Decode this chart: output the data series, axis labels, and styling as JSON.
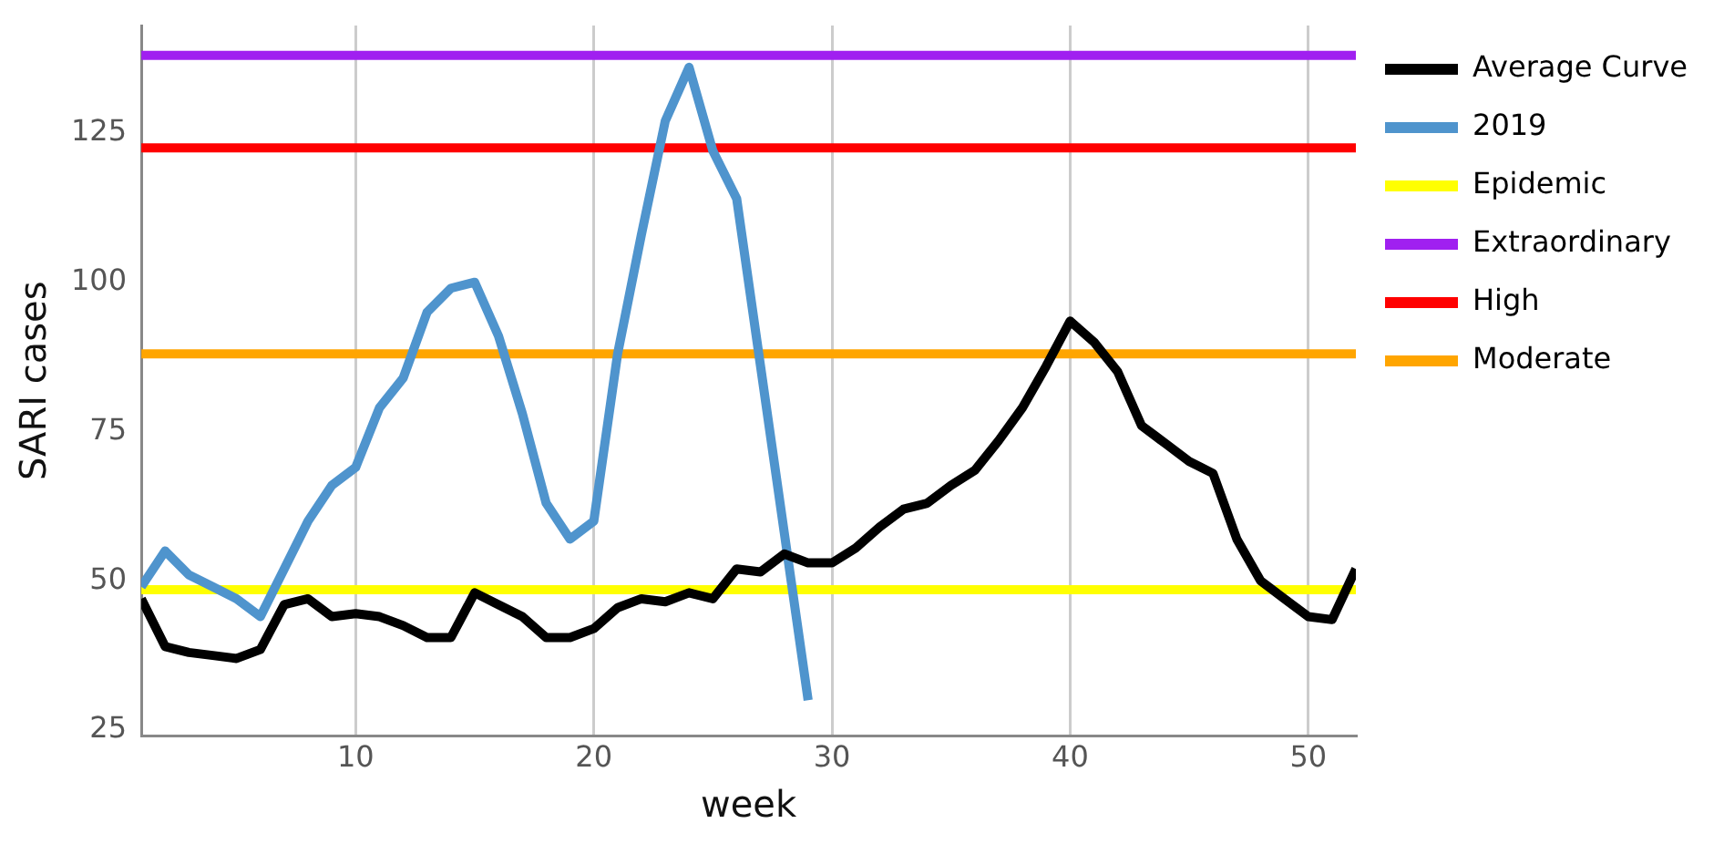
{
  "chart_data": {
    "type": "line",
    "xlabel": "week",
    "ylabel": "SARI cases",
    "xlim": [
      1,
      52
    ],
    "ylim": [
      24,
      143
    ],
    "xticks": [
      10,
      20,
      30,
      40,
      50
    ],
    "yticks": [
      25,
      50,
      75,
      100,
      125
    ],
    "grid": "x",
    "legend": "right",
    "marker": "none",
    "line_style": "solid",
    "series": [
      {
        "name": "Average Curve",
        "color": "#000000",
        "x": [
          1,
          2,
          3,
          4,
          5,
          6,
          7,
          8,
          9,
          10,
          11,
          12,
          13,
          14,
          15,
          16,
          17,
          18,
          19,
          20,
          21,
          22,
          23,
          24,
          25,
          26,
          27,
          28,
          29,
          30,
          31,
          32,
          33,
          34,
          35,
          36,
          37,
          38,
          39,
          40,
          41,
          42,
          43,
          44,
          45,
          46,
          47,
          48,
          49,
          50,
          51,
          52
        ],
        "values": [
          47,
          39,
          38,
          37.5,
          37,
          38.5,
          46,
          47,
          44,
          44.5,
          44,
          42.5,
          40.5,
          40.5,
          48,
          46,
          44,
          40.5,
          40.5,
          42,
          45.5,
          47,
          46.5,
          48,
          47,
          52,
          51.5,
          54.5,
          53,
          53,
          55.5,
          59,
          62,
          63,
          66,
          68.5,
          73.5,
          79,
          86,
          93.5,
          90,
          85,
          76,
          73,
          70,
          68,
          57,
          50,
          47,
          44,
          43.5,
          52
        ]
      },
      {
        "name": "2019",
        "color": "#4f94cd",
        "x": [
          1,
          2,
          3,
          4,
          5,
          6,
          7,
          8,
          9,
          10,
          11,
          12,
          13,
          14,
          15,
          16,
          17,
          18,
          19,
          20,
          21,
          22,
          23,
          24,
          25,
          26,
          27,
          28,
          29
        ],
        "values": [
          49,
          55,
          51,
          49,
          47,
          44,
          52,
          60,
          66,
          69,
          79,
          84,
          95,
          99,
          100,
          91,
          78,
          63,
          57,
          60,
          88,
          108,
          127,
          136,
          122,
          114,
          86,
          58,
          30
        ]
      },
      {
        "name": "Epidemic",
        "color": "#ffff00",
        "x": [
          1,
          52
        ],
        "values": [
          48.5,
          48.5
        ]
      },
      {
        "name": "Extraordinary",
        "color": "#a020f0",
        "x": [
          1,
          52
        ],
        "values": [
          138,
          138
        ]
      },
      {
        "name": "High",
        "color": "#ff0000",
        "x": [
          1,
          52
        ],
        "values": [
          122.5,
          122.5
        ]
      },
      {
        "name": "Moderate",
        "color": "#ffa500",
        "x": [
          1,
          52
        ],
        "values": [
          88,
          88
        ]
      }
    ]
  }
}
